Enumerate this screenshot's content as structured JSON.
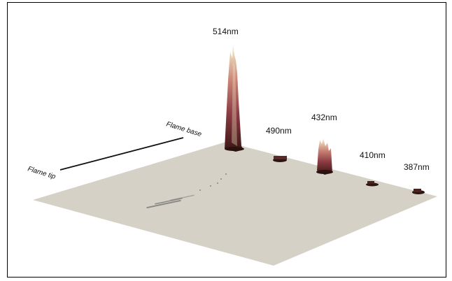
{
  "chart_data": {
    "type": "surface3d",
    "title": "",
    "peaks": [
      {
        "label": "514nm",
        "relative_intensity": 1.0
      },
      {
        "label": "490nm",
        "relative_intensity": 0.05
      },
      {
        "label": "432nm",
        "relative_intensity": 0.31
      },
      {
        "label": "410nm",
        "relative_intensity": 0.03
      },
      {
        "label": "387nm",
        "relative_intensity": 0.04
      }
    ],
    "axis_labels": {
      "start": "Flame base",
      "end": "Flame tip"
    }
  },
  "colors": {
    "plane": "#d5d1c7",
    "peak_low": "#3a1512",
    "peak_mid": "#a04a52",
    "peak_high": "#f6f2cf"
  }
}
